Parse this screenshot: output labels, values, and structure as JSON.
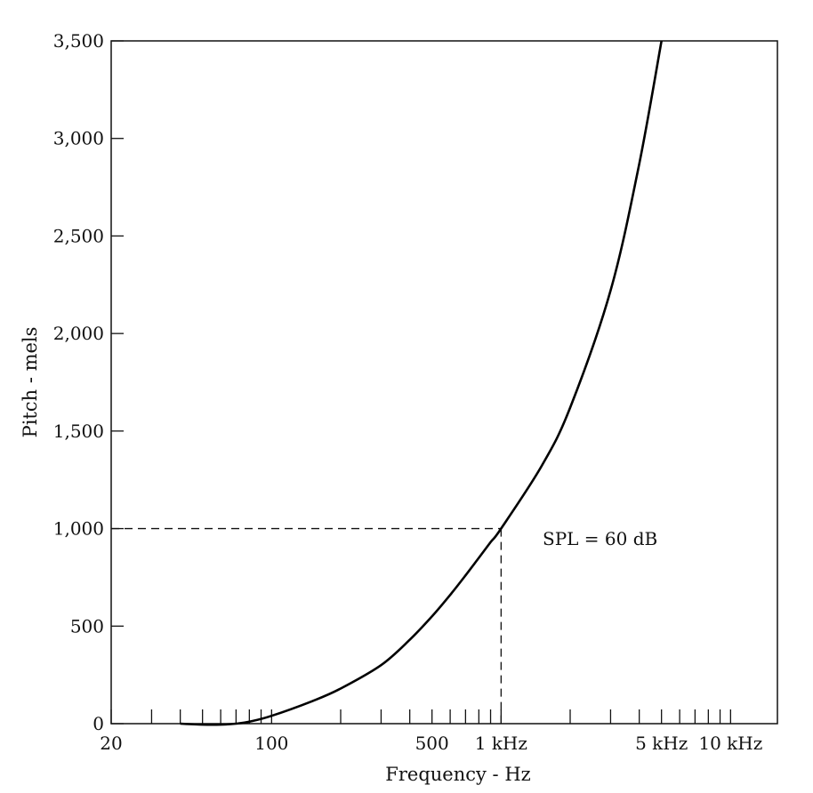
{
  "chart_data": {
    "type": "line",
    "xlabel": "Frequency - Hz",
    "ylabel": "Pitch - mels",
    "x_scale": "log",
    "xlim": [
      20,
      16000
    ],
    "ylim": [
      0,
      3500
    ],
    "grid": false,
    "x_tick_labels": [
      {
        "value": 20,
        "label": "20"
      },
      {
        "value": 100,
        "label": "100"
      },
      {
        "value": 500,
        "label": "500"
      },
      {
        "value": 1000,
        "label": "1 kHz"
      },
      {
        "value": 5000,
        "label": "5 kHz"
      },
      {
        "value": 10000,
        "label": "10 kHz"
      }
    ],
    "x_minor_ticks": [
      30,
      40,
      50,
      60,
      70,
      80,
      90,
      200,
      300,
      400,
      600,
      700,
      800,
      900,
      2000,
      3000,
      4000,
      6000,
      7000,
      8000,
      9000
    ],
    "y_ticks": [
      {
        "value": 0,
        "label": "0"
      },
      {
        "value": 500,
        "label": "500"
      },
      {
        "value": 1000,
        "label": "1,000"
      },
      {
        "value": 1500,
        "label": "1,500"
      },
      {
        "value": 2000,
        "label": "2,000"
      },
      {
        "value": 2500,
        "label": "2,500"
      },
      {
        "value": 3000,
        "label": "3,000"
      },
      {
        "value": 3500,
        "label": "3,500"
      }
    ],
    "series": [
      {
        "x": [
          40,
          50,
          60,
          70,
          80,
          100,
          150,
          200,
          300,
          400,
          500,
          600,
          700,
          800,
          900,
          1000,
          1500,
          2000,
          3000,
          4000,
          5000
        ],
        "y": [
          0,
          -5,
          -5,
          0,
          10,
          40,
          115,
          180,
          300,
          430,
          550,
          660,
          760,
          850,
          930,
          1000,
          1320,
          1620,
          2220,
          2870,
          3500
        ]
      }
    ],
    "reference_lines": [
      {
        "label": "SPL = 60 dB",
        "x": 1000,
        "y": 1000
      }
    ]
  }
}
